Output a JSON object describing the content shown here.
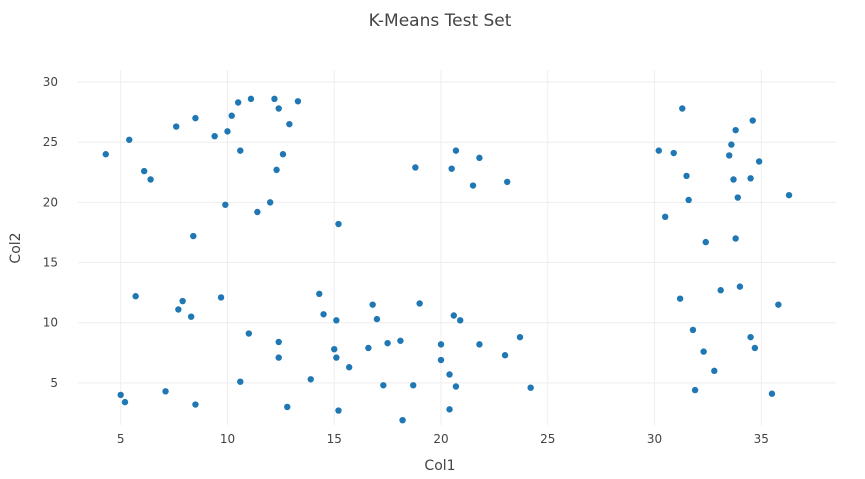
{
  "chart_data": {
    "type": "scatter",
    "title": "K-Means Test Set",
    "xlabel": "Col1",
    "ylabel": "Col2",
    "xlim": [
      3.0,
      38.5
    ],
    "ylim": [
      1.5,
      31.0
    ],
    "x_ticks": [
      5,
      10,
      15,
      20,
      25,
      30,
      35
    ],
    "y_ticks": [
      5,
      10,
      15,
      20,
      25,
      30
    ],
    "grid": true,
    "legend": "none",
    "marker_color": "#1f77b4",
    "series": [
      {
        "x": [
          4.3,
          5.4,
          6.1,
          6.4,
          7.6,
          8.5,
          9.4,
          10.0,
          10.2,
          10.5,
          11.1,
          12.2,
          12.4,
          12.9,
          13.3,
          10.6,
          12.6,
          12.3,
          9.9,
          12.0,
          11.4,
          8.4,
          5.7,
          7.7,
          7.9,
          8.3,
          9.7,
          11.0,
          12.4,
          12.4,
          10.6,
          7.1,
          8.5,
          5.0,
          5.2,
          12.8,
          14.3,
          14.5,
          15.1,
          15.0,
          15.1,
          15.7,
          16.6,
          16.8,
          17.0,
          17.5,
          18.1,
          17.3,
          18.7,
          19.0,
          20.0,
          20.0,
          20.4,
          20.6,
          20.7,
          20.9,
          21.8,
          23.0,
          23.7,
          24.2,
          13.9,
          15.2,
          18.2,
          20.4,
          15.2,
          18.8,
          20.5,
          20.7,
          21.8,
          21.5,
          23.1,
          30.2,
          30.9,
          31.3,
          31.5,
          31.6,
          30.5,
          32.4,
          33.5,
          33.6,
          33.8,
          33.9,
          34.6,
          34.9,
          34.5,
          33.7,
          33.8,
          36.3,
          31.2,
          33.1,
          34.0,
          35.8,
          31.8,
          32.3,
          34.5,
          34.7,
          32.8,
          31.9,
          35.5
        ]
      },
      {
        "y": [
          24.0,
          25.2,
          22.6,
          21.9,
          26.3,
          27.0,
          25.5,
          25.9,
          27.2,
          28.3,
          28.6,
          28.6,
          27.8,
          26.5,
          28.4,
          24.3,
          24.0,
          22.7,
          19.8,
          20.0,
          19.2,
          17.2,
          12.2,
          11.1,
          11.8,
          10.5,
          12.1,
          9.1,
          8.4,
          7.1,
          5.1,
          4.3,
          3.2,
          4.0,
          3.4,
          3.0,
          12.4,
          10.7,
          10.2,
          7.8,
          7.1,
          6.3,
          7.9,
          11.5,
          10.3,
          8.3,
          8.5,
          4.8,
          4.8,
          11.6,
          8.2,
          6.9,
          5.7,
          10.6,
          4.7,
          10.2,
          8.2,
          7.3,
          8.8,
          4.6,
          5.3,
          18.2,
          1.9,
          2.8,
          2.7,
          22.9,
          22.8,
          24.3,
          23.7,
          21.4,
          21.7,
          24.3,
          24.1,
          27.8,
          22.2,
          20.2,
          18.8,
          16.7,
          23.9,
          24.8,
          26.0,
          20.4,
          26.8,
          23.4,
          22.0,
          21.9,
          17.0,
          20.6,
          12.0,
          12.7,
          13.0,
          11.5,
          9.4,
          7.6,
          8.8,
          7.9,
          6.0,
          4.4,
          4.1
        ]
      }
    ]
  }
}
